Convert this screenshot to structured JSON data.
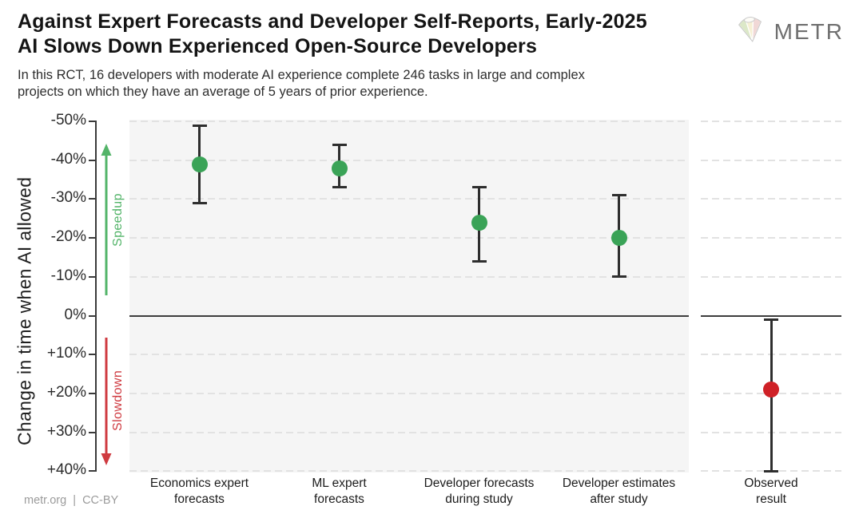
{
  "header": {
    "title": "Against Expert Forecasts and Developer Self-Reports, Early-2025\nAI Slows Down Experienced Open-Source Developers",
    "subtitle": "In this RCT, 16 developers with moderate AI experience complete 246 tasks in large and complex\nprojects on which they have an average of 5 years of prior experience.",
    "logo_text": "METR"
  },
  "footer": {
    "credit": "metr.org  |  CC-BY"
  },
  "colors": {
    "ink": "#141414",
    "green_point": "#3aa357",
    "green_accent": "#53b469",
    "red_point": "#cf2127",
    "red_accent": "#cf3a40",
    "errorbar": "#2e2e2e",
    "grid": "#e2e2e2",
    "panel_gray": "#f5f5f5",
    "axis": "#3a3a3a",
    "zero": "#3d3d3d",
    "muted": "#9b9b9b",
    "logo_gray": "#6f6f6f"
  },
  "chart_data": {
    "type": "scatter",
    "title": "Against Expert Forecasts and Developer Self-Reports, Early-2025 AI Slows Down Experienced Open-Source Developers",
    "ylabel": "Change in time when AI allowed",
    "ylim": [
      -50,
      40
    ],
    "y_axis_inverted_note": "negative (speedup) at top, positive (slowdown) at bottom",
    "yticks": [
      -50,
      -40,
      -30,
      -20,
      -10,
      0,
      10,
      20,
      30,
      40
    ],
    "ytick_labels": [
      "-50%",
      "-40%",
      "-30%",
      "-20%",
      "-10%",
      "0%",
      "+10%",
      "+20%",
      "+30%",
      "+40%"
    ],
    "grid": "horizontal dashed, zero line solid",
    "annotations": [
      {
        "text": "Speedup",
        "direction": "up",
        "color_key": "green_accent"
      },
      {
        "text": "Slowdown",
        "direction": "down",
        "color_key": "red_accent"
      }
    ],
    "panels": [
      {
        "name": "forecasts",
        "background_key": "panel_gray",
        "points": [
          {
            "label": "Economics expert\nforecasts",
            "value": -39,
            "ci": [
              -49,
              -29
            ],
            "color_key": "green_point"
          },
          {
            "label": "ML expert\nforecasts",
            "value": -38,
            "ci": [
              -44,
              -33
            ],
            "color_key": "green_point"
          },
          {
            "label": "Developer forecasts\nduring study",
            "value": -24,
            "ci": [
              -33,
              -14
            ],
            "color_key": "green_point"
          },
          {
            "label": "Developer estimates\nafter study",
            "value": -20,
            "ci": [
              -31,
              -10
            ],
            "color_key": "green_point"
          }
        ]
      },
      {
        "name": "observed",
        "background_key": "white",
        "points": [
          {
            "label": "Observed\nresult",
            "value": 19,
            "ci": [
              1,
              40
            ],
            "color_key": "red_point"
          }
        ]
      }
    ]
  }
}
